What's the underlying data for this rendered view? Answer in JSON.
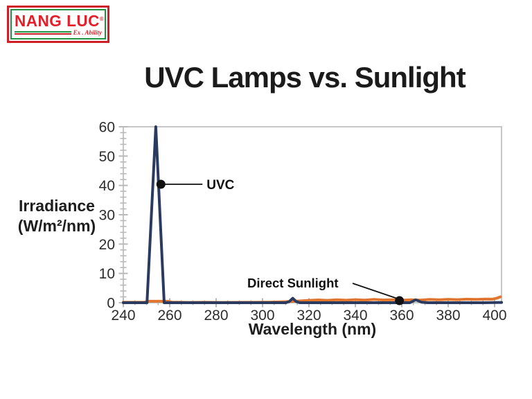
{
  "logo": {
    "brand": "NANG LUC",
    "registered_mark": "®",
    "tagline": "Ex . Ability",
    "colors": {
      "red": "#cf2027",
      "green": "#229344",
      "text_red": "#e3202a"
    }
  },
  "header": {
    "title": "UVC Lamps vs. Sunlight"
  },
  "chart_data": {
    "type": "line",
    "title": "UVC Lamps vs. Sunlight",
    "xlabel": "Wavelength (nm)",
    "ylabel": "Irradiance (W/m²/nm)",
    "ylabel_lines": [
      "Irradiance",
      "(W/m²/nm)"
    ],
    "xlim": [
      240,
      403
    ],
    "ylim": [
      0,
      60
    ],
    "xticks": [
      240,
      260,
      280,
      300,
      320,
      340,
      360,
      380,
      400
    ],
    "yticks": [
      0,
      10,
      20,
      30,
      40,
      50,
      60
    ],
    "x_minor_step": 5,
    "y_minor_step": 2,
    "grid": false,
    "legend": "none",
    "axis_color": "#c6c6c6",
    "tick_color": "#b9b9b9",
    "series": [
      {
        "name": "Direct Sunlight",
        "color": "#e0762f",
        "points": [
          [
            240,
            0.15
          ],
          [
            249,
            0.2
          ],
          [
            251,
            0.5
          ],
          [
            255,
            0.5
          ],
          [
            259,
            0.5
          ],
          [
            261,
            0.2
          ],
          [
            268,
            0.1
          ],
          [
            275,
            0.15
          ],
          [
            282,
            0.1
          ],
          [
            290,
            0.12
          ],
          [
            298,
            0.15
          ],
          [
            303,
            0.2
          ],
          [
            308,
            0.3
          ],
          [
            312,
            0.4
          ],
          [
            316,
            0.6
          ],
          [
            320,
            0.8
          ],
          [
            324,
            0.95
          ],
          [
            328,
            0.8
          ],
          [
            332,
            1.0
          ],
          [
            336,
            0.85
          ],
          [
            340,
            1.05
          ],
          [
            344,
            0.9
          ],
          [
            348,
            1.1
          ],
          [
            352,
            0.95
          ],
          [
            356,
            1.0
          ],
          [
            360,
            0.85
          ],
          [
            364,
            1.0
          ],
          [
            368,
            0.9
          ],
          [
            372,
            1.1
          ],
          [
            376,
            1.0
          ],
          [
            380,
            1.15
          ],
          [
            384,
            1.05
          ],
          [
            388,
            1.2
          ],
          [
            392,
            1.1
          ],
          [
            396,
            1.25
          ],
          [
            399,
            1.2
          ],
          [
            401,
            1.55
          ],
          [
            402.5,
            2.0
          ]
        ]
      },
      {
        "name": "UVC",
        "color": "#2b3a5f",
        "points": [
          [
            240,
            0
          ],
          [
            250.2,
            0
          ],
          [
            254,
            60
          ],
          [
            257.6,
            0
          ],
          [
            265,
            0
          ],
          [
            280,
            0
          ],
          [
            295,
            0
          ],
          [
            305,
            0
          ],
          [
            310,
            0
          ],
          [
            311.5,
            0.4
          ],
          [
            313,
            1.5
          ],
          [
            314.5,
            0.4
          ],
          [
            316,
            0
          ],
          [
            330,
            0
          ],
          [
            345,
            0
          ],
          [
            360,
            0
          ],
          [
            363.5,
            0
          ],
          [
            366,
            1.0
          ],
          [
            368.5,
            0.2
          ],
          [
            371,
            0
          ],
          [
            385,
            0
          ],
          [
            395,
            0
          ],
          [
            403,
            0.1
          ]
        ]
      }
    ],
    "annotations": [
      {
        "label": "UVC",
        "x": 256.2,
        "y": 40.4
      },
      {
        "label": "Direct Sunlight",
        "x": 359,
        "y": 0.7
      }
    ]
  }
}
